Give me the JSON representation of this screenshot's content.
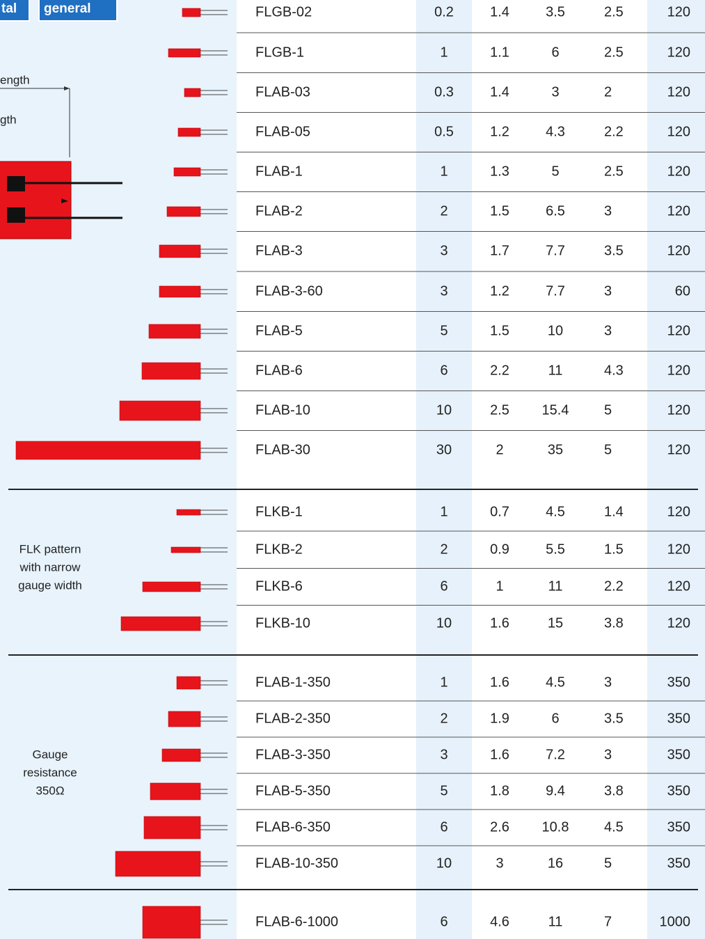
{
  "tabs": [
    "tal",
    "general"
  ],
  "diagram_labels": [
    "ength",
    "gth"
  ],
  "groups": [
    {
      "rows": [
        [
          "FLGB-02",
          "0.2",
          "1.4",
          "3.5",
          "2.5",
          "120"
        ],
        [
          "FLGB-1",
          "1",
          "1.1",
          "6",
          "2.5",
          "120"
        ],
        [
          "FLAB-03",
          "0.3",
          "1.4",
          "3",
          "2",
          "120"
        ],
        [
          "FLAB-05",
          "0.5",
          "1.2",
          "4.3",
          "2.2",
          "120"
        ],
        [
          "FLAB-1",
          "1",
          "1.3",
          "5",
          "2.5",
          "120"
        ],
        [
          "FLAB-2",
          "2",
          "1.5",
          "6.5",
          "3",
          "120"
        ],
        [
          "FLAB-3",
          "3",
          "1.7",
          "7.7",
          "3.5",
          "120"
        ],
        [
          "FLAB-3-60",
          "3",
          "1.2",
          "7.7",
          "3",
          "60"
        ],
        [
          "FLAB-5",
          "5",
          "1.5",
          "10",
          "3",
          "120"
        ],
        [
          "FLAB-6",
          "6",
          "2.2",
          "11",
          "4.3",
          "120"
        ],
        [
          "FLAB-10",
          "10",
          "2.5",
          "15.4",
          "5",
          "120"
        ],
        [
          "FLAB-30",
          "30",
          "2",
          "35",
          "5",
          "120"
        ]
      ]
    },
    {
      "label": [
        "FLK pattern",
        "with narrow",
        "gauge width"
      ],
      "rows": [
        [
          "FLKB-1",
          "1",
          "0.7",
          "4.5",
          "1.4",
          "120"
        ],
        [
          "FLKB-2",
          "2",
          "0.9",
          "5.5",
          "1.5",
          "120"
        ],
        [
          "FLKB-6",
          "6",
          "1",
          "11",
          "2.2",
          "120"
        ],
        [
          "FLKB-10",
          "10",
          "1.6",
          "15",
          "3.8",
          "120"
        ]
      ]
    },
    {
      "label": [
        "Gauge",
        "resistance",
        "350Ω"
      ],
      "rows": [
        [
          "FLAB-1-350",
          "1",
          "1.6",
          "4.5",
          "3",
          "350"
        ],
        [
          "FLAB-2-350",
          "2",
          "1.9",
          "6",
          "3.5",
          "350"
        ],
        [
          "FLAB-3-350",
          "3",
          "1.6",
          "7.2",
          "3",
          "350"
        ],
        [
          "FLAB-5-350",
          "5",
          "1.8",
          "9.4",
          "3.8",
          "350"
        ],
        [
          "FLAB-6-350",
          "6",
          "2.6",
          "10.8",
          "4.5",
          "350"
        ],
        [
          "FLAB-10-350",
          "10",
          "3",
          "16",
          "5",
          "350"
        ]
      ]
    },
    {
      "rows": [
        [
          "FLAB-6-1000",
          "6",
          "4.6",
          "11",
          "7",
          "1000"
        ]
      ]
    }
  ]
}
